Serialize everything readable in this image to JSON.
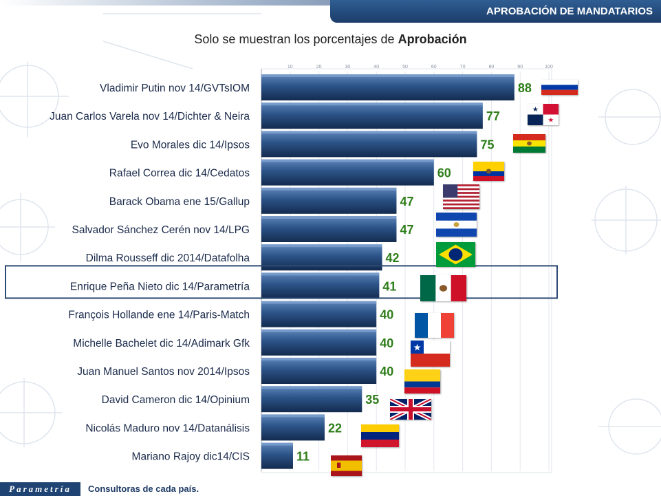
{
  "header": {
    "title": "APROBACIÓN DE MANDATARIOS"
  },
  "subtitle": {
    "prefix": "Solo se muestran los porcentajes de ",
    "bold": "Aprobación"
  },
  "footer": {
    "logo": "Parametría",
    "note": "Consultoras de cada país."
  },
  "colors": {
    "bar": "#2c4f80",
    "value": "#2e7d1a",
    "label": "#1a2a4a",
    "highlight": "#2c4a73"
  },
  "chart_data": {
    "type": "bar",
    "orientation": "horizontal",
    "axis_ticks": [
      "10",
      "20",
      "30",
      "40",
      "50",
      "60",
      "70",
      "80",
      "90",
      "100"
    ],
    "xlim": [
      0,
      100
    ],
    "highlight_index": 7,
    "categories": [
      "Vladimir Putin nov 14/GVTsIOM",
      "Juan Carlos Varela nov 14/Dichter & Neira",
      "Evo Morales dic 14/Ipsos",
      "Rafael Correa dic 14/Cedatos",
      "Barack Obama ene 15/Gallup",
      "Salvador Sánchez Cerén nov 14/LPG",
      "Dilma Rousseff dic 2014/Datafolha",
      "Enrique Peña Nieto dic 14/Parametría",
      "François Hollande ene 14/Paris-Match",
      "Michelle Bachelet dic 14/Adimark Gfk",
      "Juan Manuel Santos nov 2014/Ipsos",
      "David Cameron  dic 14/Opinium",
      "Nicolás Maduro nov 14/Datanálisis",
      "Mariano Rajoy  dic14/CIS"
    ],
    "values": [
      88,
      77,
      75,
      60,
      47,
      47,
      42,
      41,
      40,
      40,
      40,
      35,
      22,
      11
    ],
    "flags": [
      "russia-flag",
      "panama-flag",
      "bolivia-flag",
      "ecuador-flag",
      "usa-flag",
      "el-salvador-flag",
      "brazil-flag",
      "mexico-flag",
      "france-flag",
      "chile-flag",
      "colombia-flag",
      "uk-flag",
      "venezuela-flag",
      "spain-flag"
    ]
  }
}
